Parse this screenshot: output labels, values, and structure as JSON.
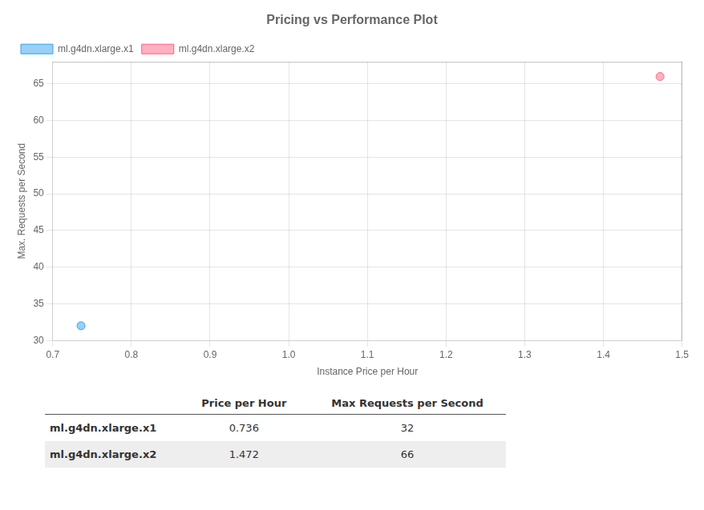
{
  "chart_data": {
    "type": "scatter",
    "title": "Pricing vs Performance Plot",
    "xlabel": "Instance Price per Hour",
    "ylabel": "Max. Requests per Second",
    "series": [
      {
        "name": "ml.g4dn.xlarge.x1",
        "x": [
          0.736
        ],
        "values": [
          32
        ]
      },
      {
        "name": "ml.g4dn.xlarge.x2",
        "x": [
          1.472
        ],
        "values": [
          66
        ]
      }
    ],
    "xlim": [
      0.7,
      1.5
    ],
    "xticks": [
      0.7,
      0.8,
      0.9,
      {
        "value": 1.0,
        "label": "1.0"
      },
      1.1,
      1.2,
      1.3,
      1.4,
      1.5
    ],
    "ylim": [
      30,
      68
    ],
    "yticks": [
      30,
      35,
      40,
      45,
      50,
      55,
      60,
      65
    ],
    "grid": true,
    "legend": "upper left",
    "table": {
      "columns": [
        "Price per Hour",
        "Max Requests per Second"
      ],
      "rows": [
        {
          "label": "ml.g4dn.xlarge.x1",
          "values": [
            0.736,
            32
          ]
        },
        {
          "label": "ml.g4dn.xlarge.x2",
          "values": [
            1.472,
            66
          ]
        }
      ]
    }
  }
}
